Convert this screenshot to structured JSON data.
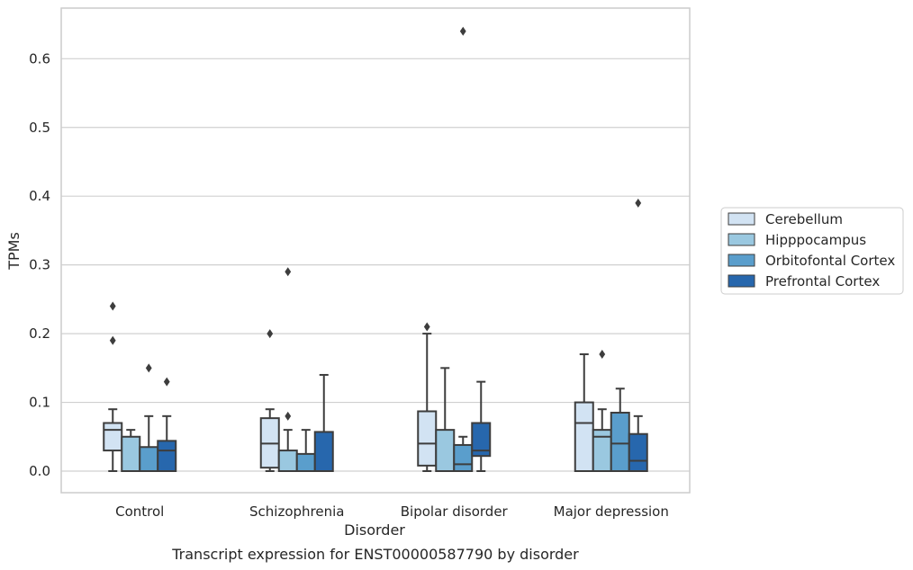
{
  "chart_data": {
    "type": "box",
    "title": "",
    "caption": "Transcript expression for ENST00000587790 by disorder",
    "xlabel": "Disorder",
    "ylabel": "TPMs",
    "ylim": [
      -0.031,
      0.675
    ],
    "yticks": [
      "0.0",
      "0.1",
      "0.2",
      "0.3",
      "0.4",
      "0.5",
      "0.6"
    ],
    "grid": "horizontal",
    "legend_position": "right",
    "categories": [
      "Control",
      "Schizophrenia",
      "Bipolar disorder",
      "Major depression"
    ],
    "series": [
      {
        "name": "Cerebellum",
        "color": "#d2e3f3",
        "boxes": [
          {
            "whislo": 0.0,
            "q1": 0.03,
            "med": 0.06,
            "q3": 0.07,
            "whishi": 0.09,
            "fliers": [
              0.19,
              0.24
            ]
          },
          {
            "whislo": 0.0,
            "q1": 0.005,
            "med": 0.04,
            "q3": 0.077,
            "whishi": 0.09,
            "fliers": [
              0.2
            ]
          },
          {
            "whislo": 0.0,
            "q1": 0.008,
            "med": 0.04,
            "q3": 0.087,
            "whishi": 0.2,
            "fliers": [
              0.21
            ]
          },
          {
            "whislo": 0.0,
            "q1": 0.0,
            "med": 0.07,
            "q3": 0.1,
            "whishi": 0.17,
            "fliers": []
          }
        ]
      },
      {
        "name": "Hipppocampus",
        "color": "#9ac8e0",
        "boxes": [
          {
            "whislo": 0.0,
            "q1": 0.0,
            "med": 0.0,
            "q3": 0.05,
            "whishi": 0.06,
            "fliers": []
          },
          {
            "whislo": 0.0,
            "q1": 0.0,
            "med": 0.0,
            "q3": 0.03,
            "whishi": 0.06,
            "fliers": [
              0.08,
              0.29
            ]
          },
          {
            "whislo": 0.0,
            "q1": 0.0,
            "med": 0.0,
            "q3": 0.06,
            "whishi": 0.15,
            "fliers": []
          },
          {
            "whislo": 0.0,
            "q1": 0.0,
            "med": 0.05,
            "q3": 0.06,
            "whishi": 0.09,
            "fliers": [
              0.17
            ]
          }
        ]
      },
      {
        "name": "Orbitofontal Cortex",
        "color": "#5a9ecc",
        "boxes": [
          {
            "whislo": 0.0,
            "q1": 0.0,
            "med": 0.0,
            "q3": 0.035,
            "whishi": 0.08,
            "fliers": [
              0.15
            ]
          },
          {
            "whislo": 0.0,
            "q1": 0.0,
            "med": 0.0,
            "q3": 0.025,
            "whishi": 0.06,
            "fliers": []
          },
          {
            "whislo": 0.0,
            "q1": 0.0,
            "med": 0.01,
            "q3": 0.038,
            "whishi": 0.05,
            "fliers": [
              0.64
            ]
          },
          {
            "whislo": 0.0,
            "q1": 0.0,
            "med": 0.04,
            "q3": 0.085,
            "whishi": 0.12,
            "fliers": []
          }
        ]
      },
      {
        "name": "Prefrontal Cortex",
        "color": "#2767ad",
        "boxes": [
          {
            "whislo": 0.0,
            "q1": 0.0,
            "med": 0.03,
            "q3": 0.044,
            "whishi": 0.08,
            "fliers": [
              0.13
            ]
          },
          {
            "whislo": 0.0,
            "q1": 0.0,
            "med": 0.0,
            "q3": 0.057,
            "whishi": 0.14,
            "fliers": []
          },
          {
            "whislo": 0.0,
            "q1": 0.022,
            "med": 0.03,
            "q3": 0.07,
            "whishi": 0.13,
            "fliers": []
          },
          {
            "whislo": 0.0,
            "q1": 0.0,
            "med": 0.015,
            "q3": 0.054,
            "whishi": 0.08,
            "fliers": [
              0.39
            ]
          }
        ]
      }
    ]
  }
}
